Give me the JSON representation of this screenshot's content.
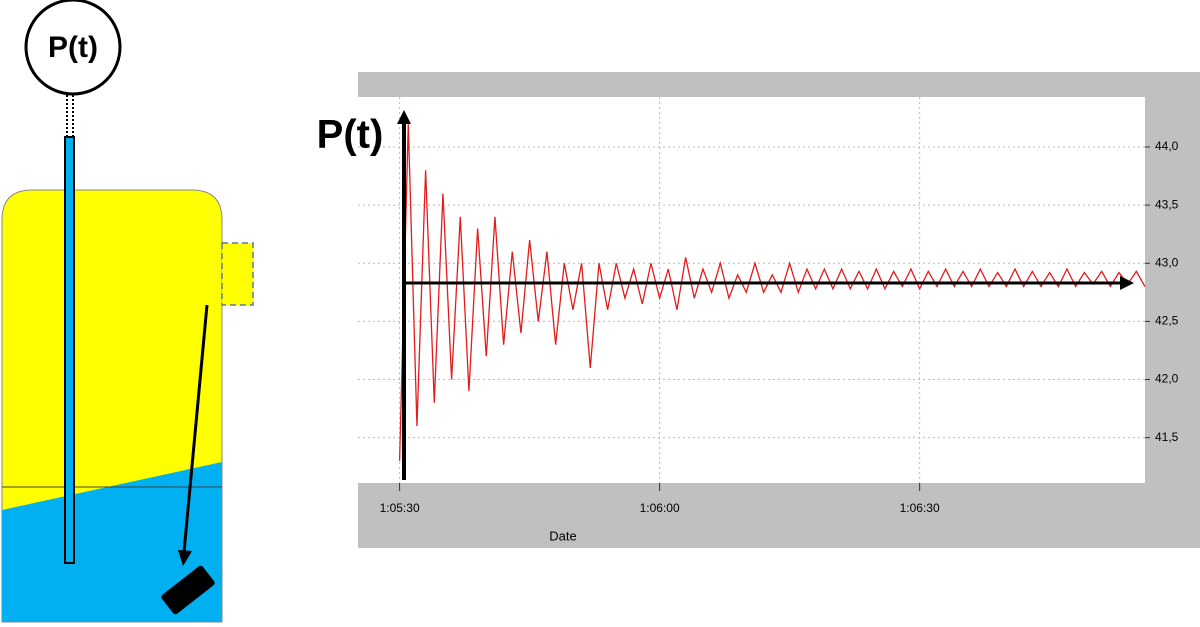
{
  "diagram": {
    "gauge_label": "P(t)"
  },
  "chart_data": {
    "type": "line",
    "ylabel": "P(t)",
    "xlabel": "Date",
    "x": [
      330,
      331,
      332,
      333,
      334,
      335,
      336,
      337,
      338,
      339,
      340,
      341,
      342,
      343,
      344,
      345,
      346,
      347,
      348,
      349,
      350,
      351,
      352,
      353,
      354,
      355,
      356,
      357,
      358,
      359,
      360,
      361,
      362,
      363,
      364,
      365,
      366,
      367,
      368,
      369,
      370,
      371,
      372,
      373,
      374,
      375,
      376,
      377,
      378,
      379,
      380,
      381,
      382,
      383,
      384,
      385,
      386,
      387,
      388,
      389,
      390,
      391,
      392,
      393,
      394,
      395,
      396,
      397,
      398,
      399,
      400,
      401,
      402,
      403,
      404,
      405,
      406,
      407,
      408,
      409,
      410,
      411,
      412,
      413,
      414,
      415,
      416
    ],
    "series": [
      {
        "name": "P(t)",
        "color": "#e31b1b",
        "values": [
          41.3,
          44.2,
          41.6,
          43.8,
          41.8,
          43.6,
          42.0,
          43.4,
          41.9,
          43.3,
          42.2,
          43.4,
          42.3,
          43.1,
          42.4,
          43.2,
          42.5,
          43.1,
          42.3,
          43.0,
          42.6,
          43.0,
          42.1,
          43.0,
          42.6,
          43.0,
          42.7,
          42.95,
          42.65,
          43.0,
          42.7,
          42.95,
          42.6,
          43.05,
          42.7,
          42.95,
          42.75,
          43.0,
          42.7,
          42.9,
          42.75,
          43.0,
          42.75,
          42.9,
          42.75,
          43.0,
          42.75,
          42.95,
          42.78,
          42.95,
          42.78,
          42.95,
          42.78,
          42.93,
          42.78,
          42.95,
          42.78,
          42.93,
          42.8,
          42.95,
          42.78,
          42.93,
          42.8,
          42.95,
          42.8,
          42.93,
          42.8,
          42.95,
          42.8,
          42.92,
          42.8,
          42.95,
          42.8,
          42.93,
          42.8,
          42.92,
          42.8,
          42.95,
          42.8,
          42.92,
          42.82,
          42.93,
          42.8,
          42.92,
          42.82,
          42.93,
          42.8
        ]
      }
    ],
    "xlim": [
      325.2,
      416
    ],
    "xticks": [
      {
        "value": 330,
        "label": "1:05:30"
      },
      {
        "value": 360,
        "label": "1:06:00"
      },
      {
        "value": 390,
        "label": "1:06:30"
      }
    ],
    "ylim": [
      41.11,
      44.43
    ],
    "yticks": [
      {
        "value": 41.5,
        "label": "41,5"
      },
      {
        "value": 42,
        "label": "42,0"
      },
      {
        "value": 42.5,
        "label": "42,5"
      },
      {
        "value": 43,
        "label": "43,0"
      },
      {
        "value": 43.5,
        "label": "43,5"
      },
      {
        "value": 44,
        "label": "44,0"
      }
    ],
    "grid": true
  }
}
